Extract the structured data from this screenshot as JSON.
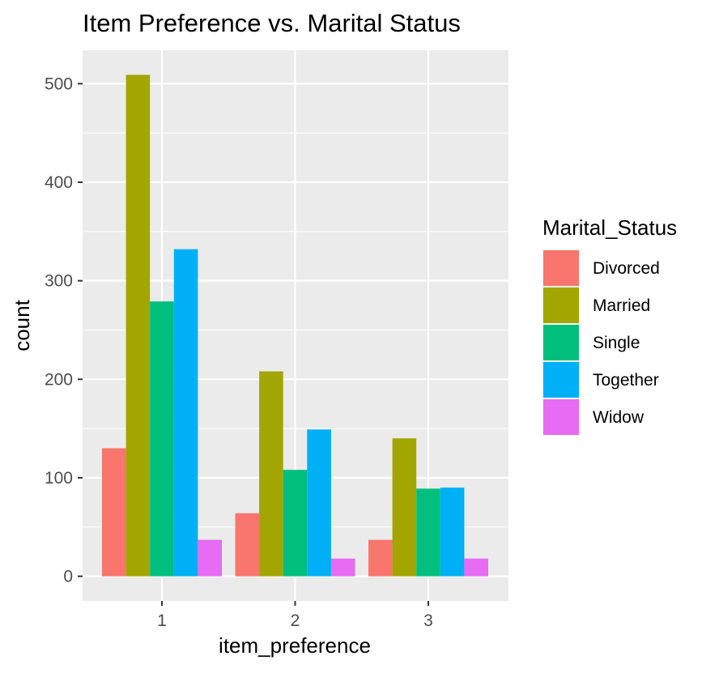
{
  "chart_data": {
    "type": "bar",
    "title": "Item Preference vs. Marital Status",
    "xlabel": "item_preference",
    "ylabel": "count",
    "categories": [
      "1",
      "2",
      "3"
    ],
    "ylim": [
      -25,
      534
    ],
    "yticks": [
      0,
      100,
      200,
      300,
      400,
      500
    ],
    "grid": true,
    "legend_position": "right",
    "legend_title": "Marital_Status",
    "series": [
      {
        "name": "Divorced",
        "color": "#F8766D",
        "values": [
          130,
          64,
          37
        ]
      },
      {
        "name": "Married",
        "color": "#A3A500",
        "values": [
          509,
          208,
          140
        ]
      },
      {
        "name": "Single",
        "color": "#00BF7D",
        "values": [
          279,
          108,
          89
        ]
      },
      {
        "name": "Together",
        "color": "#00B0F6",
        "values": [
          332,
          149,
          90
        ]
      },
      {
        "name": "Widow",
        "color": "#E76BF3",
        "values": [
          37,
          18,
          18
        ]
      }
    ]
  }
}
